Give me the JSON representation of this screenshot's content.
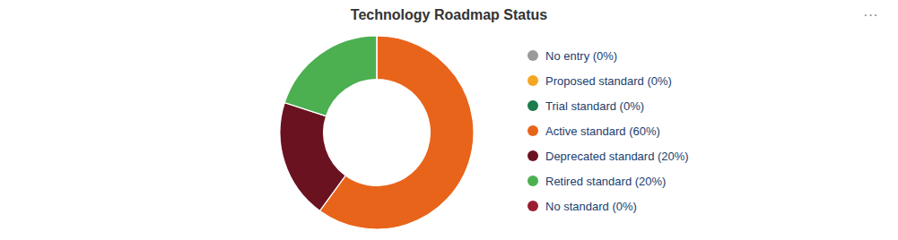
{
  "chart_data": {
    "type": "donut",
    "title": "Technology Roadmap Status",
    "categories": [
      "No entry (0%)",
      "Proposed standard (0%)",
      "Trial standard (0%)",
      "Active standard (60%)",
      "Deprecated standard (20%)",
      "Retired standard (20%)",
      "No standard (0%)"
    ],
    "values": [
      0.0001,
      0.0001,
      0.0001,
      60,
      20,
      20,
      0.0001
    ],
    "colors": [
      "#999999",
      "#f5a623",
      "#1a7c4f",
      "#e8641a",
      "#6b1221",
      "#4caf50",
      "#9b1c31"
    ],
    "legend": "right",
    "annotations": [
      "···"
    ]
  }
}
